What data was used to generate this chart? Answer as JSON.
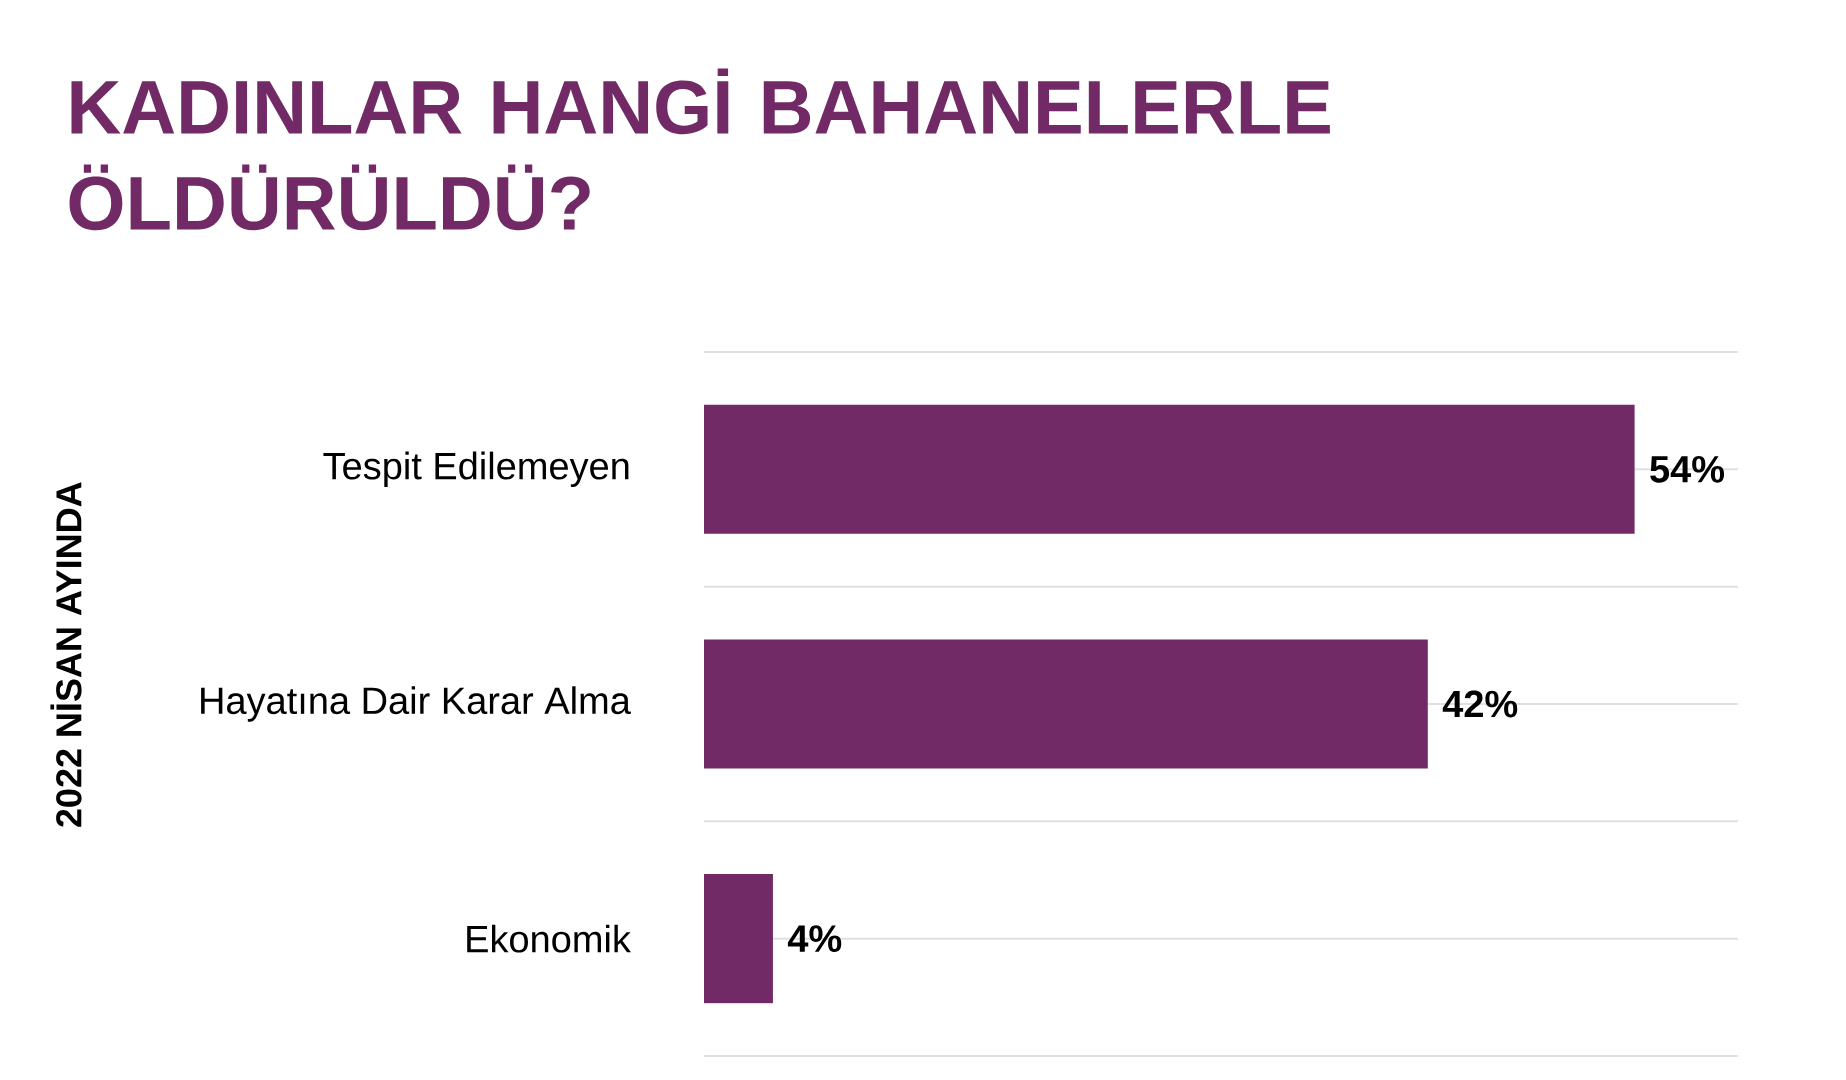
{
  "chart_data": {
    "type": "bar",
    "orientation": "horizontal",
    "title": "KADINLAR HANGİ BAHANELERLE ÖLDÜRÜLDÜ?",
    "ylabel": "2022 NİSAN AYINDA",
    "categories": [
      "Tespit Edilemeyen",
      "Hayatına Dair Karar Alma",
      "Ekonomik"
    ],
    "values": [
      54,
      42,
      4
    ],
    "value_labels": [
      "54%",
      "42%",
      "4%"
    ],
    "color": "#722a66",
    "xlim": [
      0,
      60
    ],
    "grid": "y",
    "tick_labels": "y"
  }
}
